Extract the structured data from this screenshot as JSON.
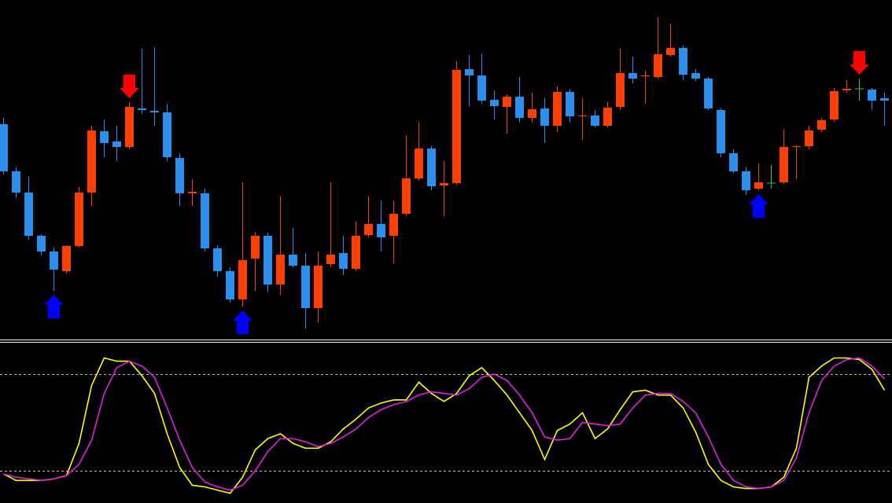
{
  "chart_data": {
    "type": "candlestick",
    "ylim": [
      0,
      430
    ],
    "up_color": "#ff4000",
    "down_color": "#2b8ff0",
    "doji_color": "#3ec43e",
    "open": [
      272,
      212,
      185,
      130,
      110,
      85,
      117,
      185,
      263,
      250,
      243,
      292,
      289,
      287,
      229,
      184,
      184,
      114,
      85,
      49,
      101,
      130,
      68,
      106,
      92,
      38,
      94,
      108,
      88,
      131,
      145,
      130,
      158,
      203,
      241,
      194,
      197,
      342,
      334,
      303,
      294,
      307,
      280,
      292,
      270,
      313,
      282,
      283,
      270,
      294,
      337,
      333,
      332,
      360,
      369,
      337,
      330,
      290,
      235,
      212,
      190,
      197,
      198,
      243,
      244,
      265,
      278,
      315,
      317,
      316,
      305
    ],
    "high": [
      280,
      218,
      205,
      132,
      115,
      118,
      192,
      270,
      278,
      270,
      300,
      368,
      370,
      298,
      235,
      202,
      190,
      118,
      90,
      198,
      135,
      134,
      180,
      140,
      108,
      110,
      198,
      130,
      148,
      180,
      175,
      175,
      258,
      275,
      245,
      225,
      352,
      360,
      362,
      315,
      310,
      332,
      312,
      305,
      320,
      317,
      305,
      290,
      300,
      368,
      358,
      340,
      408,
      400,
      372,
      342,
      332,
      292,
      240,
      218,
      222,
      220,
      265,
      245,
      270,
      280,
      318,
      328,
      330,
      318,
      312
    ],
    "low": [
      208,
      178,
      125,
      105,
      60,
      82,
      115,
      168,
      230,
      225,
      240,
      285,
      270,
      225,
      168,
      168,
      110,
      78,
      45,
      40,
      60,
      58,
      55,
      90,
      12,
      20,
      90,
      80,
      85,
      128,
      110,
      95,
      155,
      200,
      188,
      155,
      195,
      295,
      298,
      278,
      260,
      274,
      274,
      248,
      262,
      274,
      252,
      268,
      268,
      290,
      324,
      298,
      330,
      358,
      328,
      327,
      290,
      230,
      210,
      182,
      188,
      190,
      196,
      202,
      240,
      262,
      275,
      312,
      302,
      290,
      270
    ],
    "close": [
      212,
      185,
      130,
      110,
      87,
      117,
      185,
      264,
      248,
      243,
      294,
      290,
      287,
      230,
      184,
      186,
      114,
      85,
      49,
      99,
      130,
      68,
      106,
      92,
      38,
      92,
      106,
      88,
      130,
      145,
      128,
      158,
      203,
      241,
      193,
      197,
      341,
      334,
      302,
      295,
      307,
      280,
      291,
      270,
      313,
      282,
      283,
      270,
      293,
      337,
      330,
      334,
      361,
      369,
      335,
      330,
      292,
      235,
      212,
      188,
      198,
      197,
      243,
      244,
      264,
      277,
      314,
      317,
      317,
      302,
      302
    ],
    "signals": {
      "buy": [
        4,
        19,
        60
      ],
      "sell": [
        10,
        68
      ],
      "buy_color": "#0000ff",
      "sell_color": "#ff0000"
    },
    "stochastic": {
      "type": "line",
      "ylim": [
        0,
        100
      ],
      "levels": [
        20,
        80
      ],
      "series": [
        {
          "color": "#ffff00",
          "values": [
            18,
            14,
            14,
            14,
            15,
            17,
            37,
            73,
            90,
            88,
            88,
            79,
            68,
            43,
            22,
            11,
            10,
            8,
            6,
            16,
            33,
            40,
            43,
            37,
            34,
            34,
            38,
            46,
            52,
            59,
            62,
            64,
            64,
            75,
            68,
            63,
            68,
            79,
            84,
            76,
            67,
            56,
            45,
            27,
            45,
            49,
            56,
            40,
            46,
            58,
            69,
            70,
            67,
            67,
            59,
            44,
            24,
            14,
            10,
            9,
            9,
            10,
            16,
            34,
            78,
            85,
            90,
            90,
            89,
            83,
            70
          ]
        },
        {
          "color": "#e020e0",
          "values": [
            18,
            16,
            15,
            14,
            15,
            17,
            24,
            39,
            68,
            84,
            88,
            85,
            78,
            59,
            39,
            22,
            13,
            10,
            8,
            11,
            20,
            32,
            40,
            40,
            38,
            35,
            37,
            41,
            46,
            53,
            58,
            61,
            63,
            67,
            69,
            68,
            67,
            71,
            78,
            80,
            76,
            67,
            56,
            41,
            39,
            40,
            50,
            49,
            48,
            49,
            59,
            67,
            68,
            68,
            63,
            56,
            41,
            24,
            14,
            10,
            9,
            10,
            14,
            28,
            56,
            76,
            85,
            89,
            90,
            85,
            77
          ]
        }
      ]
    }
  }
}
